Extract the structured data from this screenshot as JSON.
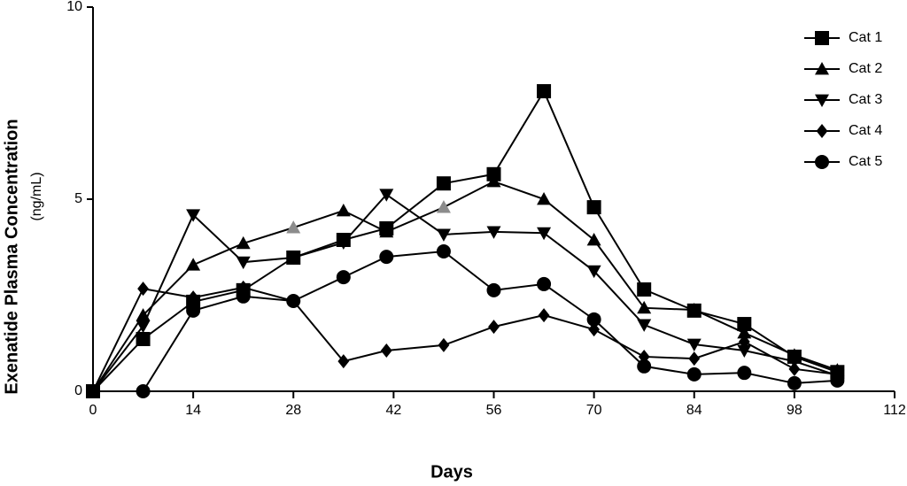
{
  "chart_data": {
    "type": "line",
    "xlabel": "Days",
    "ylabel": "Exenatide Plasma Concentration",
    "ylabel_unit": "(ng/mL)",
    "x": [
      0,
      7,
      14,
      21,
      28,
      35,
      41,
      49,
      56,
      63,
      70,
      77,
      84,
      91,
      98,
      104
    ],
    "xlim": [
      0,
      112
    ],
    "xticks": [
      0,
      14,
      28,
      42,
      56,
      70,
      84,
      98,
      112
    ],
    "ylim": [
      0,
      10
    ],
    "yticks": [
      0,
      5,
      10
    ],
    "legend": "top-right",
    "series": [
      {
        "name": "Cat 1",
        "color": "#000000",
        "marker": "square",
        "values": [
          0,
          1.36,
          2.33,
          2.63,
          3.48,
          3.94,
          4.24,
          5.41,
          5.65,
          7.81,
          4.79,
          2.65,
          2.1,
          1.75,
          0.9,
          0.5
        ]
      },
      {
        "name": "Cat 2",
        "color": "#000000",
        "marker": "triangle",
        "point_colors": [
          "#000000",
          "#000000",
          "#000000",
          "#000000",
          "#8c8c8c",
          "#000000",
          "#000000",
          "#8c8c8c",
          "#000000",
          "#000000",
          "#000000",
          "#000000",
          "#000000",
          "#000000",
          "#000000",
          "#000000"
        ],
        "values": [
          0,
          1.98,
          3.29,
          3.85,
          4.26,
          4.7,
          4.15,
          4.79,
          5.46,
          5.0,
          3.94,
          2.17,
          2.12,
          1.52,
          0.94,
          0.55
        ]
      },
      {
        "name": "Cat 3",
        "color": "#000000",
        "marker": "triangle-down",
        "values": [
          0,
          1.7,
          4.59,
          3.36,
          3.48,
          3.87,
          5.12,
          4.08,
          4.15,
          4.12,
          3.13,
          1.73,
          1.22,
          1.06,
          0.78,
          0.41
        ]
      },
      {
        "name": "Cat 4",
        "color": "#000000",
        "marker": "diamond",
        "values": [
          0,
          2.67,
          2.44,
          2.7,
          2.35,
          0.78,
          1.06,
          1.2,
          1.68,
          1.98,
          1.61,
          0.9,
          0.85,
          1.29,
          0.58,
          0.44
        ]
      },
      {
        "name": "Cat 5",
        "color": "#000000",
        "marker": "circle",
        "values": [
          0,
          0,
          2.1,
          2.47,
          2.35,
          2.97,
          3.5,
          3.64,
          2.63,
          2.79,
          1.87,
          0.65,
          0.44,
          0.48,
          0.21,
          0.28
        ]
      }
    ]
  }
}
